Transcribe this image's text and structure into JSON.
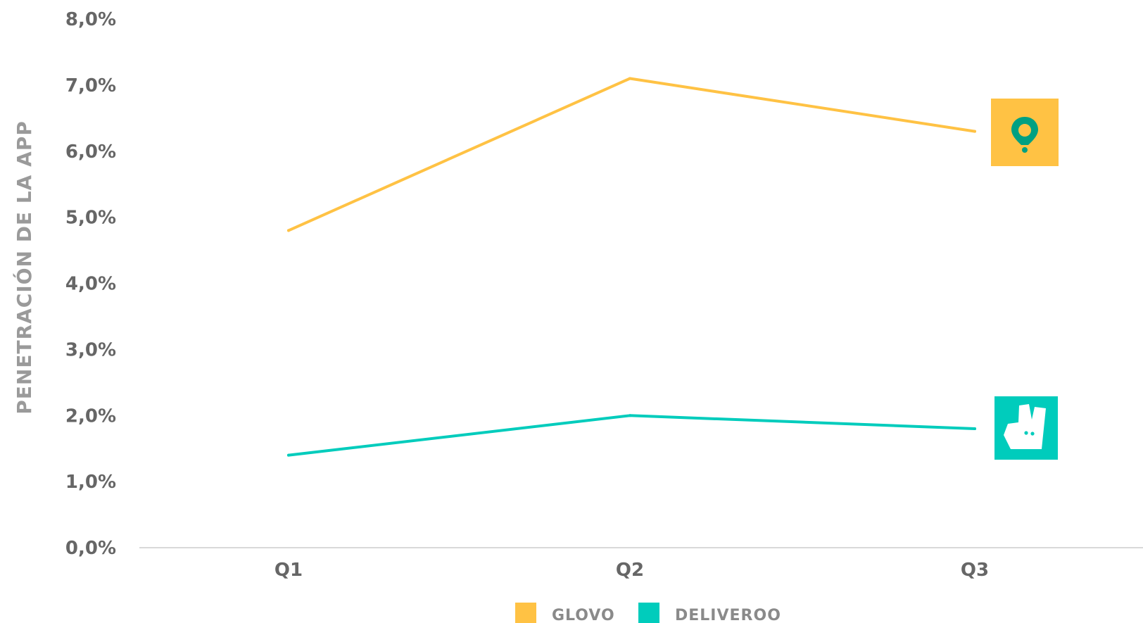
{
  "chart_data": {
    "type": "line",
    "title": "",
    "xlabel": "",
    "ylabel": "PENETRACIÓN DE LA APP",
    "categories": [
      "Q1",
      "Q2",
      "Q3"
    ],
    "y_ticks": [
      "0,0%",
      "1,0%",
      "2,0%",
      "3,0%",
      "4,0%",
      "5,0%",
      "6,0%",
      "7,0%",
      "8,0%"
    ],
    "ylim": [
      0,
      8
    ],
    "grid": false,
    "legend_position": "bottom-center",
    "series": [
      {
        "name": "GLOVO",
        "values": [
          4.8,
          7.1,
          6.3
        ],
        "color": "#FFC244",
        "end_icon": "glovo-pin-icon"
      },
      {
        "name": "DELIVEROO",
        "values": [
          1.4,
          2.0,
          1.8
        ],
        "color": "#00CCBC",
        "end_icon": "deliveroo-kangaroo-icon"
      }
    ]
  }
}
